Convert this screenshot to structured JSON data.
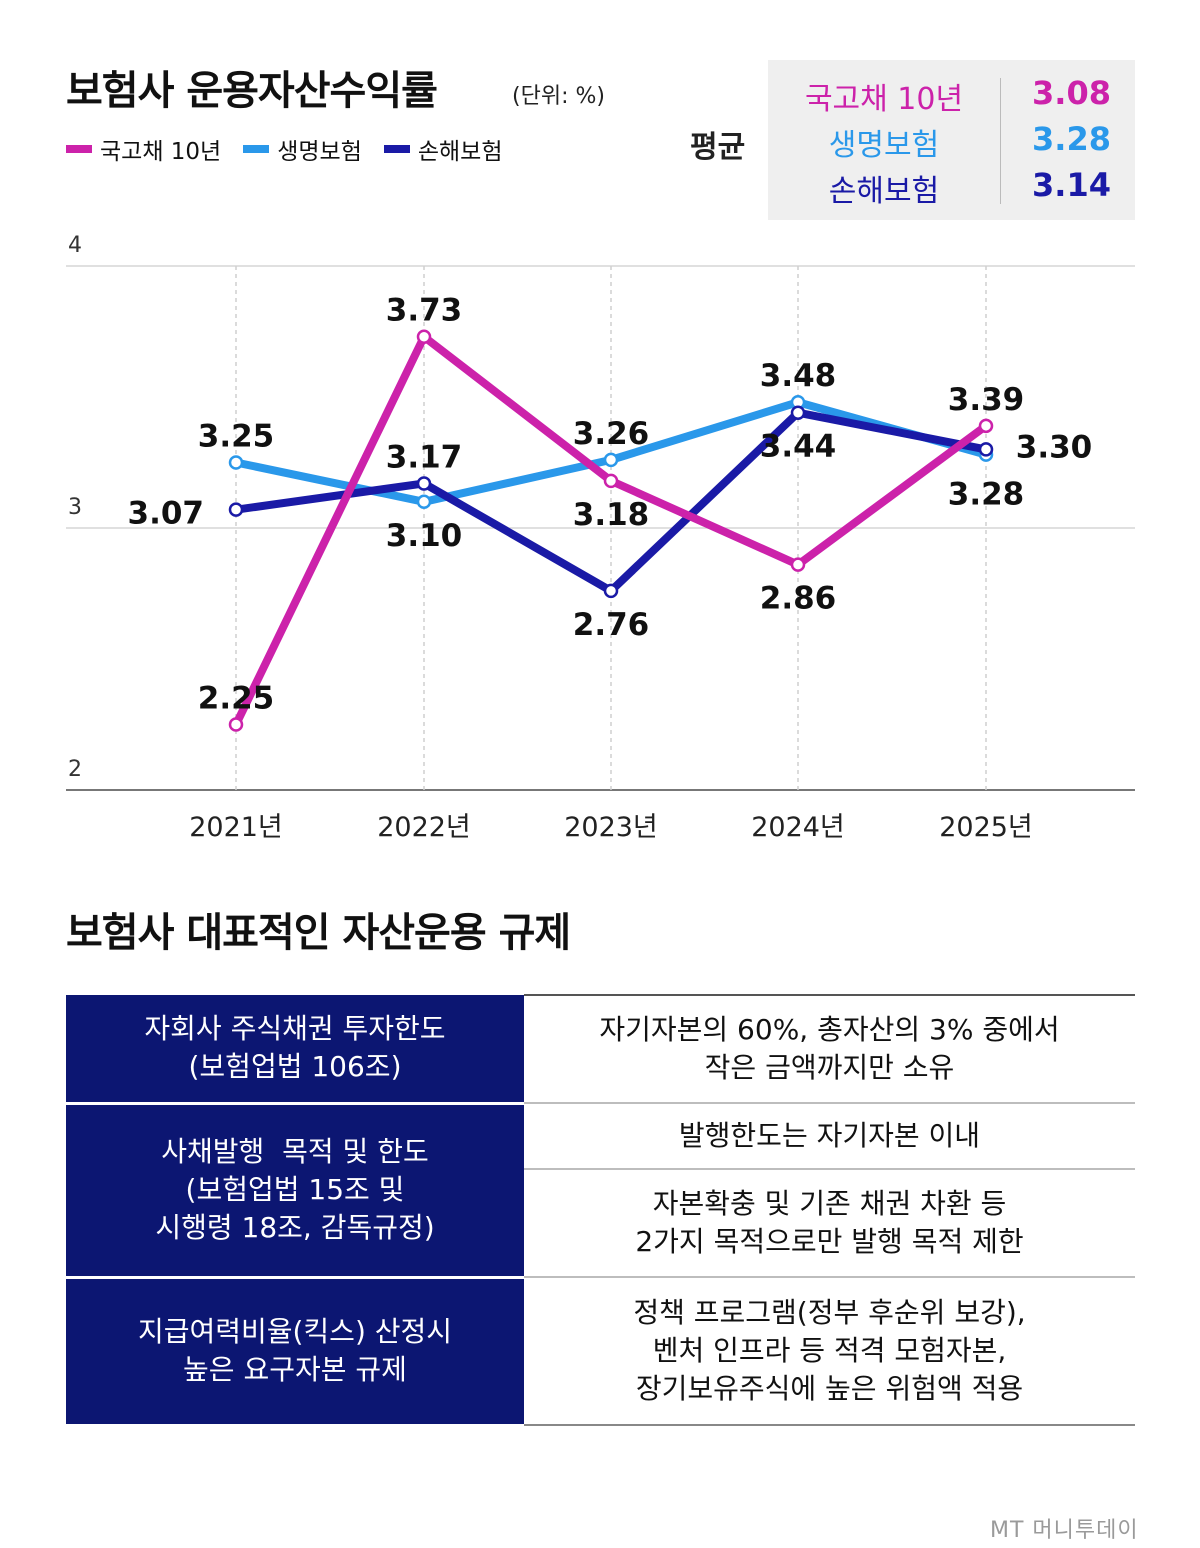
{
  "header": {
    "title": "보험사 운용자산수익률",
    "unit": "(단위: %)"
  },
  "legend": [
    {
      "label": "국고채 10년",
      "color": "#cc22aa"
    },
    {
      "label": "생명보험",
      "color": "#2a98ea"
    },
    {
      "label": "손해보험",
      "color": "#1a1aa6"
    }
  ],
  "average": {
    "label": "평균",
    "rows": [
      {
        "name": "국고채 10년",
        "value": "3.08",
        "color": "#cc22aa"
      },
      {
        "name": "생명보험",
        "value": "3.28",
        "color": "#2a98ea"
      },
      {
        "name": "손해보험",
        "value": "3.14",
        "color": "#1a1aa6"
      }
    ]
  },
  "chart_data": {
    "type": "line",
    "categories": [
      "2021년",
      "2022년",
      "2023년",
      "2024년",
      "2025년"
    ],
    "ylim": [
      2,
      4
    ],
    "yticks": [
      "4",
      "3",
      "2"
    ],
    "grid": "horizontal",
    "series": [
      {
        "name": "국고채 10년",
        "color": "#cc22aa",
        "values": [
          2.25,
          3.73,
          3.18,
          2.86,
          3.39
        ]
      },
      {
        "name": "생명보험",
        "color": "#2a98ea",
        "values": [
          3.25,
          3.1,
          3.26,
          3.48,
          3.28
        ]
      },
      {
        "name": "손해보험",
        "color": "#1a1aa6",
        "values": [
          3.07,
          3.17,
          2.76,
          3.44,
          3.3
        ]
      }
    ]
  },
  "regulation": {
    "title": "보험사 대표적인 자산운용 규제",
    "rows": [
      {
        "left": [
          "자회사 주식채권 투자한도",
          "(보험업법 106조)"
        ],
        "right": [
          [
            "자기자본의 60%, 총자산의 3% 중에서",
            "작은 금액까지만 소유"
          ]
        ]
      },
      {
        "left": [
          "사채발행  목적 및 한도",
          "(보험업법 15조 및",
          "시행령 18조, 감독규정)"
        ],
        "right": [
          [
            "발행한도는 자기자본 이내"
          ],
          [
            "자본확충 및 기존 채권 차환 등",
            "2가지 목적으로만 발행 목적 제한"
          ]
        ]
      },
      {
        "left": [
          "지급여력비율(킥스) 산정시",
          "높은 요구자본 규제"
        ],
        "right": [
          [
            "정책 프로그램(정부 후순위 보강),",
            "벤처 인프라 등 적격 모험자본,",
            "장기보유주식에 높은 위험액 적용"
          ]
        ]
      }
    ]
  },
  "watermark": "MT 머니투데이"
}
